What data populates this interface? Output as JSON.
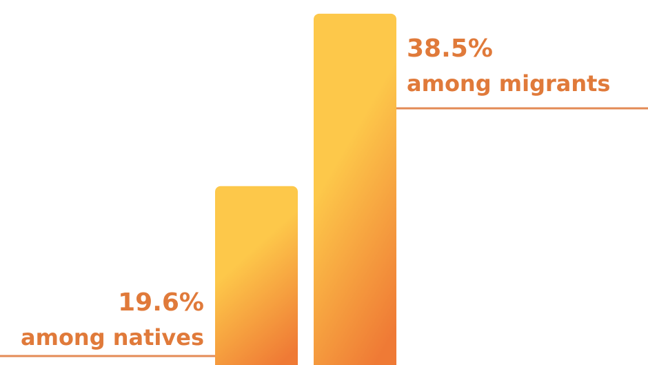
{
  "chart_data": {
    "type": "bar",
    "categories": [
      "among natives",
      "among migrants"
    ],
    "values": [
      19.6,
      38.5
    ],
    "value_labels": [
      "19.6%",
      "38.5%"
    ],
    "ylim": [
      0,
      40
    ],
    "grid": false,
    "legend": "none",
    "colors": {
      "bar_top": "#fdc84a",
      "bar_bottom": "#ef7a35",
      "text": "#e07a3a",
      "leader_line": "#e38a55"
    }
  }
}
